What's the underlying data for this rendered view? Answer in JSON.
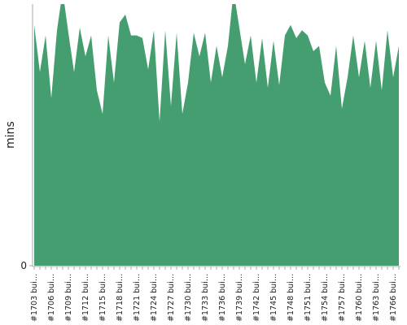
{
  "chart_data": {
    "type": "area",
    "y_label": "mins",
    "color": "#459e6f",
    "ylim": [
      0,
      100
    ],
    "yticks": [
      0
    ],
    "categories": [
      "#1703 bui…",
      null,
      null,
      "#1706 bui…",
      null,
      null,
      "#1709 bui…",
      null,
      null,
      "#1712 bui…",
      null,
      null,
      "#1715 bui…",
      null,
      null,
      "#1718 bui…",
      null,
      null,
      "#1721 bui…",
      null,
      null,
      "#1724 bui…",
      null,
      null,
      "#1727 bui…",
      null,
      null,
      "#1730 bui…",
      null,
      null,
      "#1733 bui…",
      null,
      null,
      "#1736 bui…",
      null,
      null,
      "#1739 bui…",
      null,
      null,
      "#1742 bui…",
      null,
      null,
      "#1745 bui…",
      null,
      null,
      "#1748 bui…",
      null,
      null,
      "#1751 bui…",
      null,
      null,
      "#1754 bui…",
      null,
      null,
      "#1757 bui…",
      null,
      null,
      "#1760 bui…",
      null,
      null,
      "#1763 bui…",
      null,
      null,
      "#1766 bui…",
      null
    ],
    "values": [
      92,
      74,
      88,
      64,
      90,
      105,
      89,
      74,
      91,
      80,
      88,
      67,
      58,
      88,
      70,
      93,
      96,
      88,
      88,
      87,
      75,
      90,
      55,
      90,
      61,
      89,
      58,
      70,
      89,
      80,
      89,
      70,
      84,
      72,
      84,
      105,
      91,
      77,
      88,
      70,
      87,
      68,
      86,
      69,
      88,
      92,
      87,
      90,
      88,
      82,
      84,
      70,
      65,
      84,
      60,
      72,
      88,
      72,
      86,
      68,
      86,
      67,
      90,
      72,
      84
    ]
  }
}
